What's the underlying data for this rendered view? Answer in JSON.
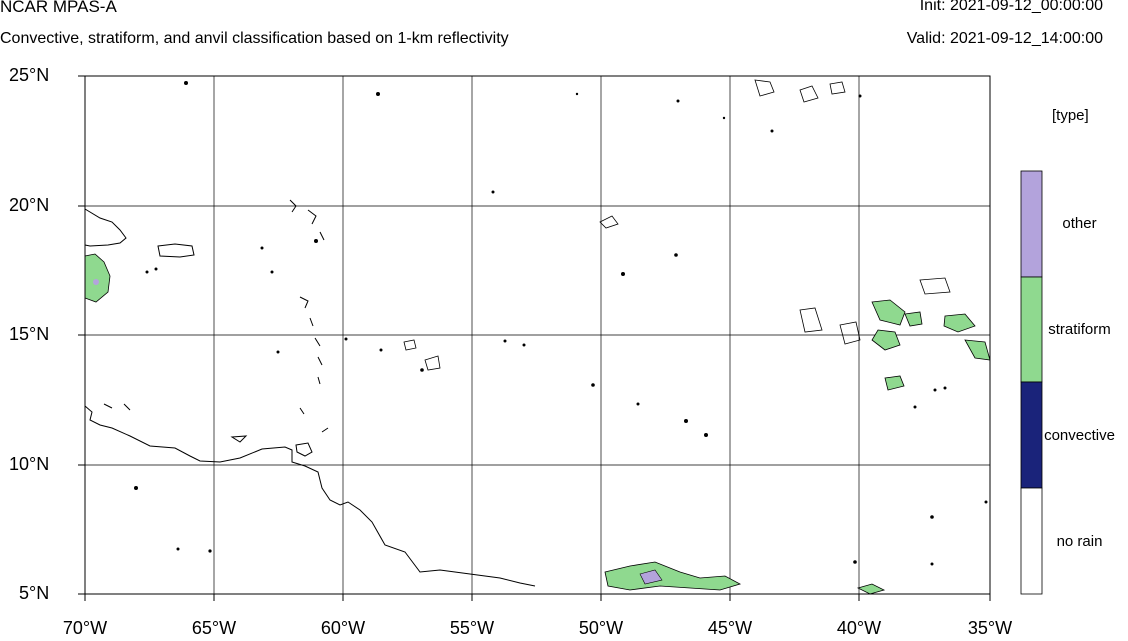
{
  "header": {
    "model": "NCAR MPAS-A",
    "description": "Convective, stratiform, and anvil classification based on 1-km reflectivity",
    "init": "Init: 2021-09-12_00:00:00",
    "valid": "Valid: 2021-09-12_14:00:00"
  },
  "map": {
    "lat_labels": [
      "25°N",
      "20°N",
      "15°N",
      "10°N",
      "5°N"
    ],
    "lon_labels": [
      "70°W",
      "65°W",
      "60°W",
      "55°W",
      "50°W",
      "45°W",
      "40°W",
      "35°W"
    ],
    "extent": {
      "lon": [
        -70,
        -35
      ],
      "lat": [
        5,
        25
      ]
    },
    "gridlines": true
  },
  "legend": {
    "title": "[type]",
    "items": [
      {
        "label": "other",
        "color": "#b3a3dc"
      },
      {
        "label": "stratiform",
        "color": "#8fd98f"
      },
      {
        "label": "convective",
        "color": "#1a237a"
      },
      {
        "label": "no rain",
        "color": "#ffffff"
      }
    ]
  }
}
